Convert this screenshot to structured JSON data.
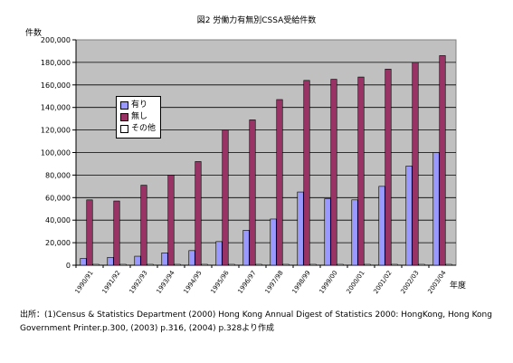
{
  "chart_data": {
    "type": "bar",
    "title": "図2  労働力有無別CSSA受給件数",
    "ylabel": "件数",
    "xlabel": "年度",
    "ylim": [
      0,
      200000
    ],
    "y_ticks": [
      "0",
      "20,000",
      "40,000",
      "60,000",
      "80,000",
      "100,000",
      "120,000",
      "140,000",
      "160,000",
      "180,000",
      "200,000"
    ],
    "grid": true,
    "legend_position": "upper-left inside",
    "categories": [
      "1990/91",
      "1991/92",
      "1992/93",
      "1993/94",
      "1994/95",
      "1995/96",
      "1996/97",
      "1997/98",
      "1998/99",
      "1999/00",
      "2000/01",
      "2001/02",
      "2002/03",
      "2003/04"
    ],
    "series": [
      {
        "name": "有り",
        "color": "#9999ff",
        "values": [
          6000,
          7000,
          8000,
          11000,
          13000,
          21000,
          31000,
          41000,
          65000,
          59000,
          58000,
          70000,
          88000,
          100000
        ]
      },
      {
        "name": "無し",
        "color": "#993366",
        "values": [
          58000,
          57000,
          71000,
          80000,
          92000,
          120000,
          129000,
          147000,
          164000,
          165000,
          167000,
          174000,
          180000,
          186000
        ]
      },
      {
        "name": "その他",
        "color": "#ffffff",
        "values": [
          300,
          300,
          300,
          300,
          300,
          300,
          300,
          300,
          300,
          300,
          300,
          300,
          300,
          300
        ]
      }
    ]
  },
  "source_note": "出所：(1)Census & Statistics Department (2000) Hong Kong Annual Digest of Statistics 2000: HongKong, Hong Kong Government Printer.p.300, (2003) p.316, (2004) p.328より作成"
}
